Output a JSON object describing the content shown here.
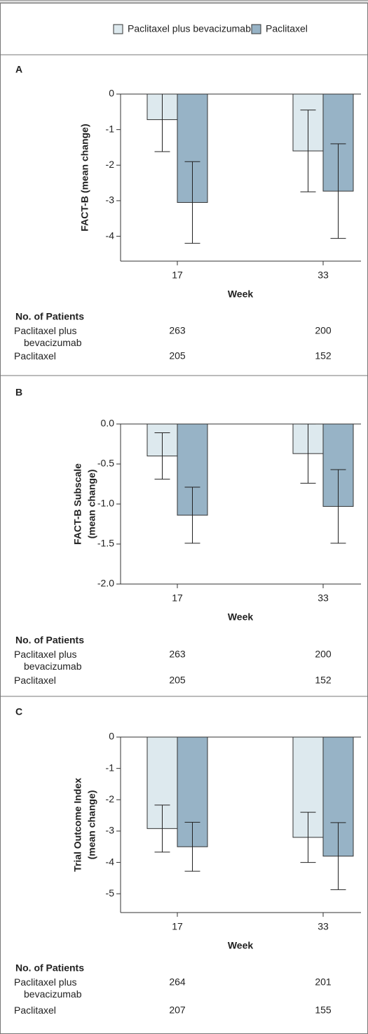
{
  "chart_data": [
    {
      "type": "bar",
      "panel": "A",
      "ylabel": "FACT-B (mean change)",
      "xlabel": "Week",
      "categories": [
        "17",
        "33"
      ],
      "series": [
        {
          "name": "Paclitaxel plus bevacizumab",
          "color": "#dde9ee",
          "values": [
            -0.72,
            -1.6
          ],
          "errors": [
            0.9,
            1.15
          ]
        },
        {
          "name": "Paclitaxel",
          "color": "#97b3c6",
          "values": [
            -3.05,
            -2.73
          ],
          "errors": [
            1.15,
            1.33
          ]
        }
      ],
      "ylim": [
        -4.7,
        0
      ],
      "yticks": [
        0,
        -1,
        -2,
        -3,
        -4
      ],
      "patients": {
        "title": "No. of Patients",
        "rows": [
          {
            "label": "Paclitaxel plus bevacizumab",
            "values": [
              263,
              200
            ]
          },
          {
            "label": "Paclitaxel",
            "values": [
              205,
              152
            ]
          }
        ]
      }
    },
    {
      "type": "bar",
      "panel": "B",
      "ylabel": [
        "FACT-B  Subscale",
        "(mean change)"
      ],
      "xlabel": "Week",
      "categories": [
        "17",
        "33"
      ],
      "series": [
        {
          "color": "#dde9ee",
          "values": [
            -0.4,
            -0.37
          ],
          "errors": [
            0.29,
            0.37
          ]
        },
        {
          "color": "#97b3c6",
          "values": [
            -1.14,
            -1.03
          ],
          "errors": [
            0.35,
            0.46
          ]
        }
      ],
      "ylim": [
        -2,
        0
      ],
      "yticks": [
        {
          "value": 0,
          "label": "0.0"
        },
        -0.5,
        {
          "value": -1,
          "label": "-1.0"
        },
        -1.5,
        {
          "value": -2,
          "label": "-2.0"
        }
      ],
      "patients": {
        "title": "No. of Patients",
        "rows": [
          {
            "label": "Paclitaxel plus bevacizumab",
            "values": [
              263,
              200
            ]
          },
          {
            "label": "Paclitaxel",
            "values": [
              205,
              152
            ]
          }
        ]
      }
    },
    {
      "type": "bar",
      "panel": "C",
      "ylabel": [
        "Trial Outcome Index",
        "(mean change)"
      ],
      "xlabel": "Week",
      "categories": [
        "17",
        "33"
      ],
      "series": [
        {
          "color": "#dde9ee",
          "values": [
            -2.92,
            -3.2
          ],
          "errors": [
            0.75,
            0.8
          ]
        },
        {
          "color": "#97b3c6",
          "values": [
            -3.5,
            -3.8
          ],
          "errors": [
            0.78,
            1.07
          ]
        }
      ],
      "ylim": [
        -5.6,
        0
      ],
      "yticks": [
        0,
        -1,
        -2,
        -3,
        -4,
        -5
      ],
      "patients": {
        "title": "No. of Patients",
        "rows": [
          {
            "label": "Paclitaxel plus bevacizumab",
            "values": [
              264,
              201
            ]
          },
          {
            "label": "Paclitaxel",
            "values": [
              207,
              155
            ]
          }
        ]
      }
    }
  ]
}
